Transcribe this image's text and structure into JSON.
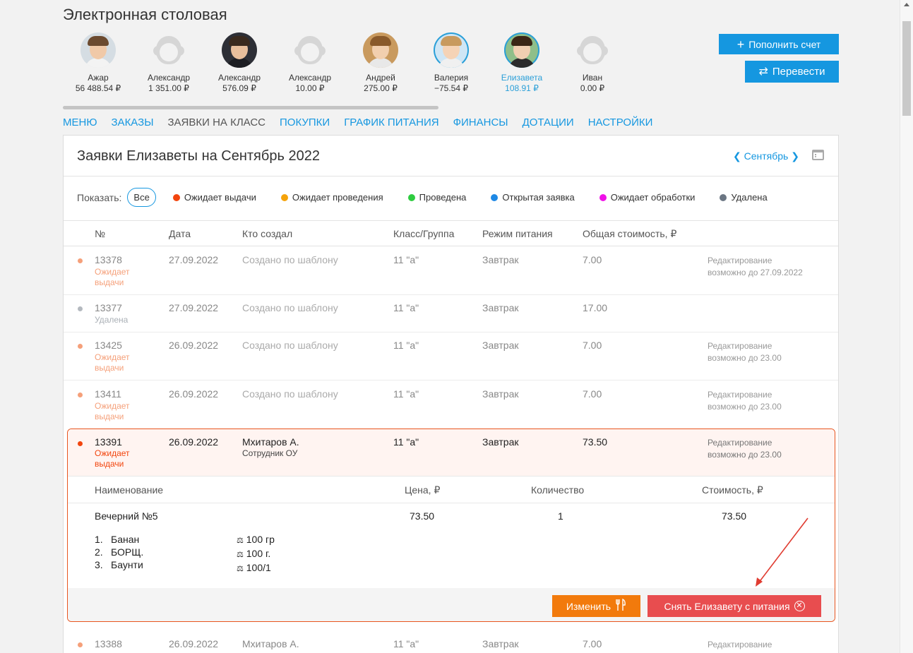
{
  "app": {
    "title": "Электронная столовая"
  },
  "kids": [
    {
      "name": "Ажар",
      "balance": "56 488.54 ₽"
    },
    {
      "name": "Александр",
      "balance": "1 351.00 ₽"
    },
    {
      "name": "Александр",
      "balance": "576.09 ₽"
    },
    {
      "name": "Александр",
      "balance": "10.00 ₽"
    },
    {
      "name": "Андрей",
      "balance": "275.00 ₽"
    },
    {
      "name": "Валерия",
      "balance": "−75.54 ₽"
    },
    {
      "name": "Елизавета",
      "balance": "108.91 ₽"
    },
    {
      "name": "Иван",
      "balance": "0.00 ₽"
    }
  ],
  "actions": {
    "topup": "Пополнить счет",
    "transfer": "Перевести"
  },
  "nav": [
    "МЕНЮ",
    "ЗАКАЗЫ",
    "ЗАЯВКИ НА КЛАСС",
    "ПОКУПКИ",
    "ГРАФИК ПИТАНИЯ",
    "ФИНАНСЫ",
    "ДОТАЦИИ",
    "НАСТРОЙКИ"
  ],
  "panel": {
    "title": "Заявки Елизаветы на Сентябрь 2022",
    "month": "Сентябрь"
  },
  "filters": {
    "label": "Показать:",
    "all": "Все",
    "items": [
      {
        "label": "Ожидает выдачи",
        "color": "#f2450e"
      },
      {
        "label": "Ожидает проведения",
        "color": "#f5a30a"
      },
      {
        "label": "Проведена",
        "color": "#2ecc40"
      },
      {
        "label": "Открытая заявка",
        "color": "#1e88e5"
      },
      {
        "label": "Ожидает обработки",
        "color": "#f010e8"
      },
      {
        "label": "Удалена",
        "color": "#6b7683"
      }
    ]
  },
  "table": {
    "headers": [
      "№",
      "Дата",
      "Кто создал",
      "Класс/Группа",
      "Режим питания",
      "Общая стоимость, ₽"
    ],
    "rows": [
      {
        "num": "13378",
        "status": [
          "Ожидает",
          "выдачи"
        ],
        "date": "27.09.2022",
        "creator": "Создано по шаблону",
        "cls": "11 \"а\"",
        "mode": "Завтрак",
        "cost": "7.00",
        "note": [
          "Редактирование",
          "возможно до 27.09.2022"
        ]
      },
      {
        "num": "13377",
        "status": [
          "Удалена"
        ],
        "date": "27.09.2022",
        "creator": "Создано по шаблону",
        "cls": "11 \"а\"",
        "mode": "Завтрак",
        "cost": "17.00"
      },
      {
        "num": "13425",
        "status": [
          "Ожидает",
          "выдачи"
        ],
        "date": "26.09.2022",
        "creator": "Создано по шаблону",
        "cls": "11 \"а\"",
        "mode": "Завтрак",
        "cost": "7.00",
        "note": [
          "Редактирование",
          "возможно до 23.00"
        ]
      },
      {
        "num": "13411",
        "status": [
          "Ожидает",
          "выдачи"
        ],
        "date": "26.09.2022",
        "creator": "Создано по шаблону",
        "cls": "11 \"а\"",
        "mode": "Завтрак",
        "cost": "7.00",
        "note": [
          "Редактирование",
          "возможно до 23.00"
        ]
      }
    ],
    "selected": {
      "num": "13391",
      "status": [
        "Ожидает",
        "выдачи"
      ],
      "date": "26.09.2022",
      "creator": "Мхитаров А.",
      "creator_role": "Сотрудник ОУ",
      "cls": "11 \"а\"",
      "mode": "Завтрак",
      "cost": "73.50",
      "note": [
        "Редактирование",
        "возможно до 23.00"
      ],
      "detail_headers": [
        "Наименование",
        "Цена, ₽",
        "Количество",
        "Стоимость, ₽"
      ],
      "item": {
        "name": "Вечерний №5",
        "price": "73.50",
        "qty": "1",
        "total": "73.50"
      },
      "components": [
        {
          "n": "1.",
          "name": "Банан",
          "weight": "100 гр"
        },
        {
          "n": "2.",
          "name": "БОРЩ.",
          "weight": "100 г."
        },
        {
          "n": "3.",
          "name": "Баунти",
          "weight": "100/1"
        }
      ],
      "edit_label": "Изменить",
      "remove_label": "Снять Елизавету с питания"
    },
    "last_row": {
      "num": "13388",
      "date": "26.09.2022",
      "creator": "Мхитаров А.",
      "cls": "11 \"а\"",
      "mode": "Завтрак",
      "cost": "7.00",
      "note": "Редактирование"
    }
  }
}
